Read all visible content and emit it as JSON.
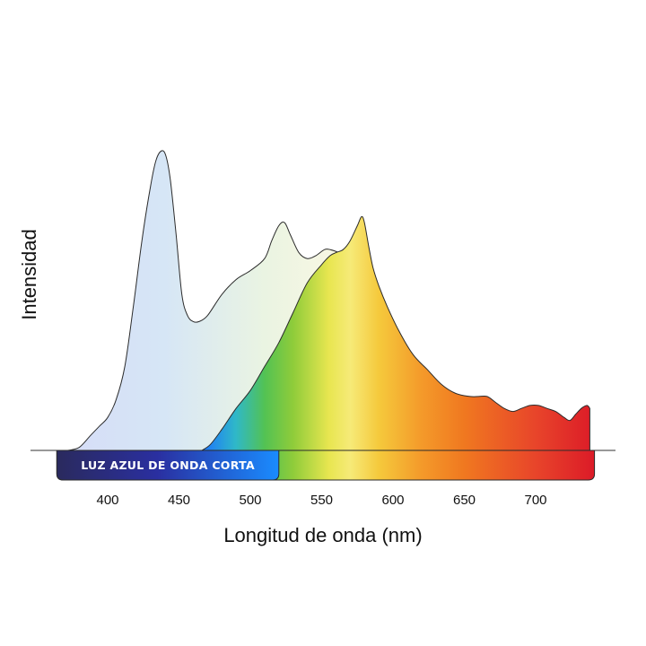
{
  "chart_data": {
    "type": "area",
    "xlabel": "Longitud de onda (nm)",
    "ylabel": "Intensidad",
    "xlim": [
      365,
      740
    ],
    "ylim": [
      0,
      1
    ],
    "x_ticks": [
      400,
      450,
      500,
      550,
      600,
      650,
      700
    ],
    "grid": false,
    "legend": "none",
    "band": {
      "label": "LUZ AZUL DE ONDA CORTA",
      "range": [
        365,
        520
      ],
      "color_start": "#2a2a5e",
      "color_end": "#1a8cff"
    },
    "spectrum_colors": [
      {
        "nm": 365,
        "color": "#2b2b66"
      },
      {
        "nm": 440,
        "color": "#2a30b0"
      },
      {
        "nm": 470,
        "color": "#1f7ff5"
      },
      {
        "nm": 490,
        "color": "#2fb8c8"
      },
      {
        "nm": 510,
        "color": "#53c253"
      },
      {
        "nm": 530,
        "color": "#8fcc3a"
      },
      {
        "nm": 555,
        "color": "#e8e650"
      },
      {
        "nm": 570,
        "color": "#f6ea78"
      },
      {
        "nm": 590,
        "color": "#f5c93c"
      },
      {
        "nm": 620,
        "color": "#f49a2a"
      },
      {
        "nm": 650,
        "color": "#f07820"
      },
      {
        "nm": 700,
        "color": "#e8452a"
      },
      {
        "nm": 740,
        "color": "#dc1c28"
      }
    ],
    "series": [
      {
        "x": [
          372,
          380,
          388,
          394,
          400,
          406,
          412,
          418,
          424,
          430,
          434,
          438,
          441,
          444,
          448,
          452,
          456,
          460,
          464,
          470,
          480,
          490,
          500,
          510,
          515,
          520,
          524,
          528,
          534,
          540,
          546,
          552,
          556,
          562,
          568,
          574,
          578
        ],
        "y": [
          0.0,
          0.01,
          0.05,
          0.08,
          0.11,
          0.17,
          0.28,
          0.48,
          0.7,
          0.88,
          0.97,
          1.0,
          0.98,
          0.9,
          0.72,
          0.52,
          0.45,
          0.43,
          0.43,
          0.45,
          0.52,
          0.57,
          0.6,
          0.64,
          0.7,
          0.75,
          0.76,
          0.72,
          0.66,
          0.64,
          0.65,
          0.67,
          0.67,
          0.66,
          0.64,
          0.62,
          0.6
        ],
        "colors": [
          "#d6ddf7",
          "#d6e6f6",
          "#eaf4e2",
          "#fdf8e4"
        ]
      },
      {
        "x": [
          466,
          472,
          480,
          490,
          500,
          510,
          520,
          530,
          540,
          550,
          556,
          560,
          565,
          570,
          575,
          578,
          580,
          583,
          586,
          590,
          596,
          604,
          614,
          624,
          634,
          644,
          654,
          660,
          666,
          672,
          678,
          684,
          690,
          696,
          702,
          708,
          714,
          720,
          724,
          728,
          732,
          736,
          738
        ],
        "y": [
          0.0,
          0.02,
          0.07,
          0.14,
          0.2,
          0.28,
          0.36,
          0.46,
          0.56,
          0.62,
          0.65,
          0.66,
          0.67,
          0.7,
          0.75,
          0.78,
          0.76,
          0.68,
          0.61,
          0.55,
          0.48,
          0.4,
          0.32,
          0.27,
          0.22,
          0.19,
          0.18,
          0.18,
          0.18,
          0.16,
          0.14,
          0.13,
          0.14,
          0.15,
          0.15,
          0.14,
          0.13,
          0.11,
          0.1,
          0.12,
          0.14,
          0.15,
          0.14
        ]
      }
    ]
  }
}
